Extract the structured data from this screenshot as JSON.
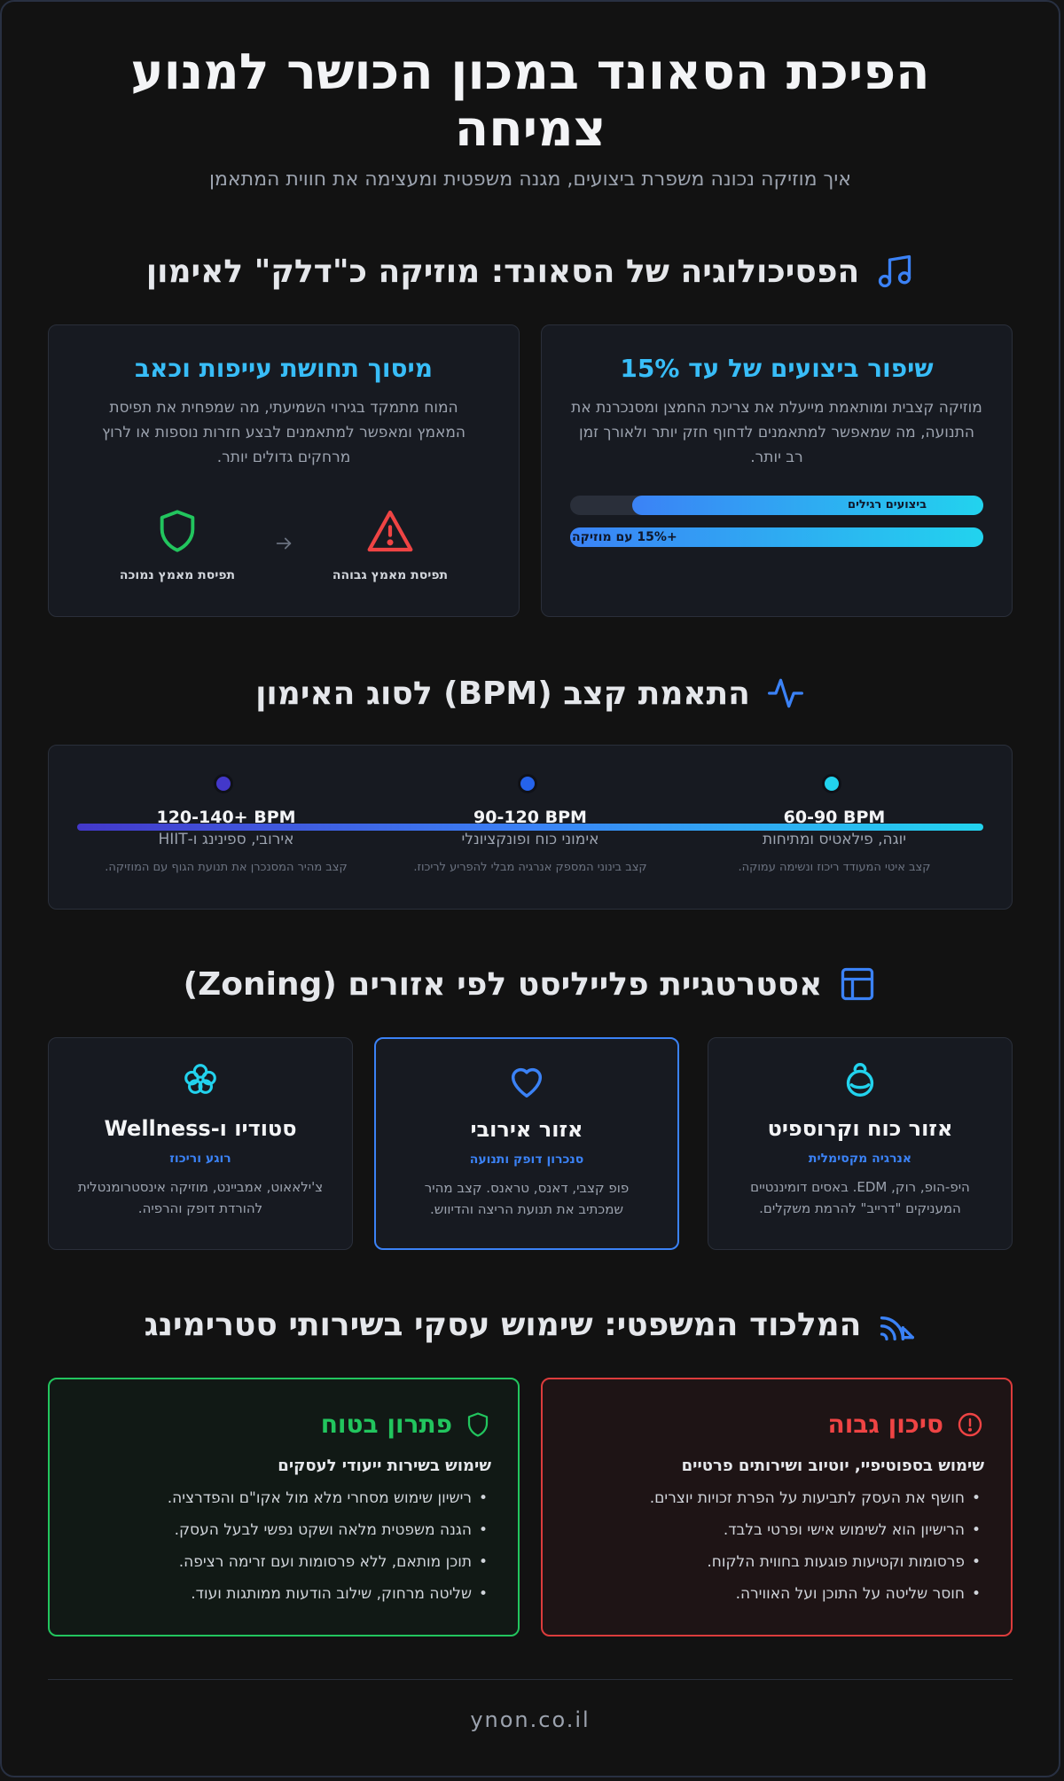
{
  "header": {
    "title": "הפיכת הסאונד במכון הכושר למנוע צמיחה",
    "subtitle": "איך מוזיקה נכונה משפרת ביצועים, מגנה משפטית ומעצימה את חווית המתאמן"
  },
  "psychology": {
    "title": "הפסיכולוגיה של הסאונד: מוזיקה כ\"דלק\" לאימון",
    "icon": "music-note-icon",
    "performance_card": {
      "title": "שיפור ביצועים של עד 15%",
      "text": "מוזיקה קצבית ומותאמת מייעלת את צריכת החמצן ומסנכרנת את התנועה, מה שמאפשר למתאמנים לדחוף חזק יותר ולאורך זמן רב יותר.",
      "bars": [
        {
          "label": "ביצועים רגילים",
          "value": 85
        },
        {
          "label": "+15% עם מוזיקה",
          "value": 100
        }
      ]
    },
    "fatigue_card": {
      "title": "מיסוך תחושת עייפות וכאב",
      "text": "המוח מתמקד בגירוי השמיעתי, מה שמפחית את תפיסת המאמץ ומאפשר למתאמנים לבצע חזרות נוספות או לרוץ מרחקים גדולים יותר.",
      "high_label": "תפיסת מאמץ גבוהה",
      "low_label": "תפיסת מאמץ נמוכה"
    }
  },
  "bpm": {
    "title": "התאמת קצב (BPM) לסוג האימון",
    "icon": "pulse-icon",
    "items": [
      {
        "bpm": "60-90 BPM",
        "type": "יוגה, פילאטיס ומתיחות",
        "desc": "קצב איטי המעודד ריכוז ונשימה עמוקה.",
        "color": "#22d3ee"
      },
      {
        "bpm": "90-120 BPM",
        "type": "אימוני כוח ופונקציונלי",
        "desc": "קצב בינוני המספק אנרגיה מבלי להפריע לריכוז.",
        "color": "#2563eb"
      },
      {
        "bpm": "120-140+ BPM",
        "type": "אירובי, ספינינג ו-HIIT",
        "desc": "קצב מהיר המסנכרן את תנועת הגוף עם המוזיקה.",
        "color": "#4338ca"
      }
    ]
  },
  "zoning": {
    "title": "אסטרטגיית פלייליסט לפי אזורים (Zoning)",
    "icon": "layout-icon",
    "zones": [
      {
        "icon": "kettlebell-icon",
        "title": "אזור כוח וקרוספיט",
        "sub": "אנרגיה מקסימלית",
        "text": "היפ-הופ, רוק, EDM. באסים דומיננטיים המעניקים \"דרייב\" להרמת משקלים."
      },
      {
        "icon": "heart-icon",
        "title": "אזור אירובי",
        "sub": "סנכרון דופק ותנועה",
        "text": "פופ קצבי, דאנס, טראנס. קצב מהיר שמכתיב את תנועת הריצה והדיווש."
      },
      {
        "icon": "flower-icon",
        "title": "סטודיו ו-Wellness",
        "sub": "רוגע וריכוז",
        "text": "צ'ילאאוט, אמביינט, מוזיקה אינסטרומנטלית להורדת דופק והרפיה."
      }
    ]
  },
  "legal": {
    "title": "המלכוד המשפטי: שימוש עסקי בשירותי סטרימינג",
    "icon": "broadcast-icon",
    "risk": {
      "title": "סיכון גבוה",
      "sub": "שימוש בספוטיפיי, יוטיוב ושירותים פרטיים",
      "items": [
        "חושף את העסק לתביעות על הפרת זכויות יוצרים.",
        "הרישיון הוא לשימוש אישי ופרטי בלבד.",
        "פרסומות וקטיעות פוגעות בחווית הלקוח.",
        "חוסר שליטה על התוכן ועל האווירה."
      ]
    },
    "safe": {
      "title": "פתרון בטוח",
      "sub": "שימוש בשירות ייעודי לעסקים",
      "items": [
        "רישיון שימוש מסחרי מלא מול אקו\"ם והפדרציה.",
        "הגנה משפטית מלאה ושקט נפשי לבעל העסק.",
        "תוכן מותאם, ללא פרסומות ועם זרימה רציפה.",
        "שליטה מרחוק, שילוב הודעות ממותגות ועוד."
      ]
    }
  },
  "footer": {
    "text": "ynon.co.il"
  }
}
